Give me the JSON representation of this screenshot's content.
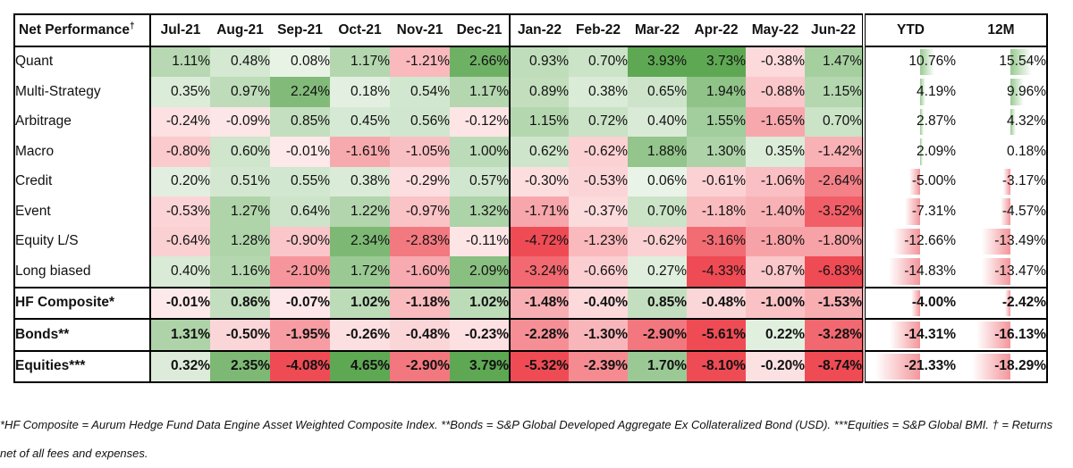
{
  "table": {
    "header_label": "Net Performance",
    "header_mark": "†",
    "months": [
      "Jul-21",
      "Aug-21",
      "Sep-21",
      "Oct-21",
      "Nov-21",
      "Dec-21",
      "Jan-22",
      "Feb-22",
      "Mar-22",
      "Apr-22",
      "May-22",
      "Jun-22"
    ],
    "ytd_label": "YTD",
    "m12_label": "12M",
    "rows": [
      {
        "name": "Quant",
        "values": [
          "1.11%",
          "0.48%",
          "0.08%",
          "1.17%",
          "-1.21%",
          "2.66%",
          "0.93%",
          "0.70%",
          "3.93%",
          "3.73%",
          "-0.38%",
          "1.47%"
        ],
        "ytd": "10.76%",
        "m12": "15.54%",
        "bold": false
      },
      {
        "name": "Multi-Strategy",
        "values": [
          "0.35%",
          "0.97%",
          "2.24%",
          "0.18%",
          "0.54%",
          "1.17%",
          "0.89%",
          "0.38%",
          "0.65%",
          "1.94%",
          "-0.88%",
          "1.15%"
        ],
        "ytd": "4.19%",
        "m12": "9.96%",
        "bold": false
      },
      {
        "name": "Arbitrage",
        "values": [
          "-0.24%",
          "-0.09%",
          "0.85%",
          "0.45%",
          "0.56%",
          "-0.12%",
          "1.15%",
          "0.72%",
          "0.40%",
          "1.55%",
          "-1.65%",
          "0.70%"
        ],
        "ytd": "2.87%",
        "m12": "4.32%",
        "bold": false
      },
      {
        "name": "Macro",
        "values": [
          "-0.80%",
          "0.60%",
          "-0.01%",
          "-1.61%",
          "-1.05%",
          "1.00%",
          "0.62%",
          "-0.62%",
          "1.88%",
          "1.30%",
          "0.35%",
          "-1.42%"
        ],
        "ytd": "2.09%",
        "m12": "0.18%",
        "bold": false
      },
      {
        "name": "Credit",
        "values": [
          "0.20%",
          "0.51%",
          "0.55%",
          "0.38%",
          "-0.29%",
          "0.57%",
          "-0.30%",
          "-0.53%",
          "0.06%",
          "-0.61%",
          "-1.06%",
          "-2.64%"
        ],
        "ytd": "-5.00%",
        "m12": "-3.17%",
        "bold": false
      },
      {
        "name": "Event",
        "values": [
          "-0.53%",
          "1.27%",
          "0.64%",
          "1.22%",
          "-0.97%",
          "1.32%",
          "-1.71%",
          "-0.37%",
          "0.70%",
          "-1.18%",
          "-1.40%",
          "-3.52%"
        ],
        "ytd": "-7.31%",
        "m12": "-4.57%",
        "bold": false
      },
      {
        "name": "Equity L/S",
        "values": [
          "-0.64%",
          "1.28%",
          "-0.90%",
          "2.34%",
          "-2.83%",
          "-0.11%",
          "-4.72%",
          "-1.23%",
          "-0.62%",
          "-3.16%",
          "-1.80%",
          "-1.80%"
        ],
        "ytd": "-12.66%",
        "m12": "-13.49%",
        "bold": false
      },
      {
        "name": "Long biased",
        "values": [
          "0.40%",
          "1.16%",
          "-2.10%",
          "1.72%",
          "-1.60%",
          "2.09%",
          "-3.24%",
          "-0.66%",
          "0.27%",
          "-4.33%",
          "-0.87%",
          "-6.83%"
        ],
        "ytd": "-14.83%",
        "m12": "-13.47%",
        "bold": false
      },
      {
        "name": "HF Composite*",
        "values": [
          "-0.01%",
          "0.86%",
          "-0.07%",
          "1.02%",
          "-1.18%",
          "1.02%",
          "-1.48%",
          "-0.40%",
          "0.85%",
          "-0.48%",
          "-1.00%",
          "-1.53%"
        ],
        "ytd": "-4.00%",
        "m12": "-2.42%",
        "bold": true
      },
      {
        "name": "Bonds**",
        "values": [
          "1.31%",
          "-0.50%",
          "-1.95%",
          "-0.26%",
          "-0.48%",
          "-0.23%",
          "-2.28%",
          "-1.30%",
          "-2.90%",
          "-5.61%",
          "0.22%",
          "-3.28%"
        ],
        "ytd": "-14.31%",
        "m12": "-16.13%",
        "bold": true
      },
      {
        "name": "Equities***",
        "values": [
          "0.32%",
          "2.35%",
          "-4.08%",
          "4.65%",
          "-2.90%",
          "3.79%",
          "-5.32%",
          "-2.39%",
          "1.70%",
          "-8.10%",
          "-0.20%",
          "-8.74%"
        ],
        "ytd": "-21.33%",
        "m12": "-18.29%",
        "bold": true
      }
    ]
  },
  "footnote": "*HF Composite = Aurum Hedge Fund Data Engine Asset Weighted Composite Index. **Bonds = S&P Global Developed Aggregate Ex Collateralized Bond (USD). ***Equities = S&P Global BMI. † = Returns net of all fees and expenses.",
  "colors": {
    "positive": "#5ea853",
    "negative": "#ef4b55",
    "bar_positive": "#8dc585",
    "bar_negative": "#f28a90",
    "border": "#000000"
  }
}
